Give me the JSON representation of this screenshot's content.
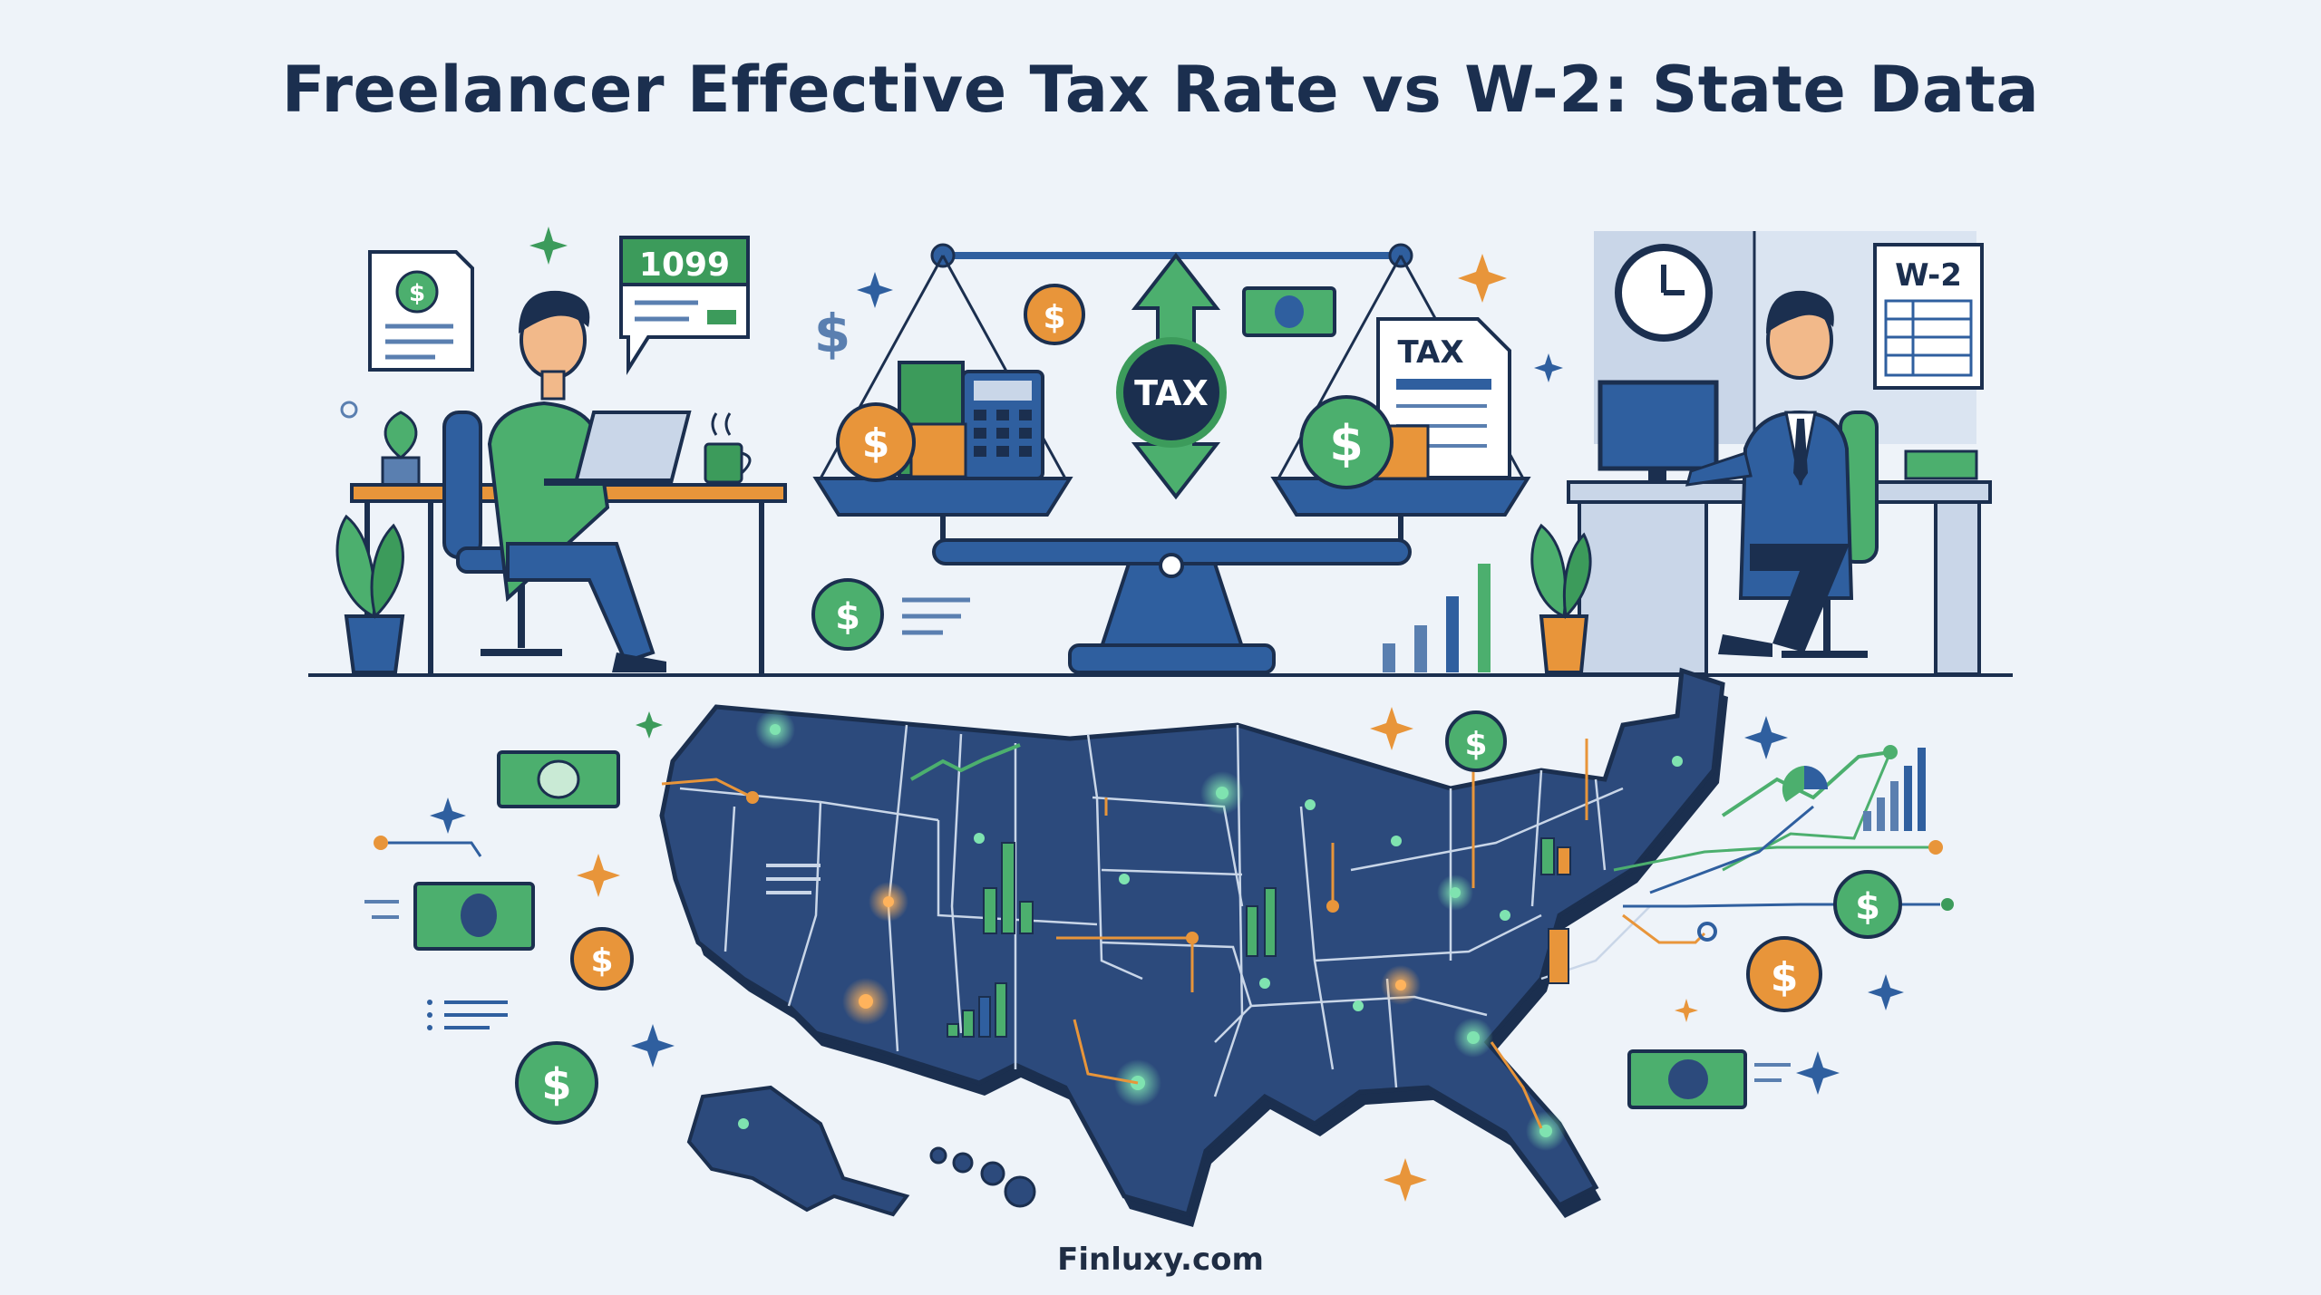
{
  "title": "Freelancer Effective Tax Rate vs W-2: State Data",
  "footer": {
    "brand": "Finluxy.com"
  },
  "freelancer": {
    "form_badge": "1099"
  },
  "balance": {
    "center_label": "TAX",
    "document_label": "TAX"
  },
  "employee": {
    "form_badge": "W-2"
  },
  "currency_symbol": "$",
  "colors": {
    "navy": "#1b2f4f",
    "blue": "#2f5f9f",
    "green": "#3c9b5b",
    "orange": "#e8953a",
    "map": "#2c4a7c",
    "background": "#eef3f9"
  }
}
